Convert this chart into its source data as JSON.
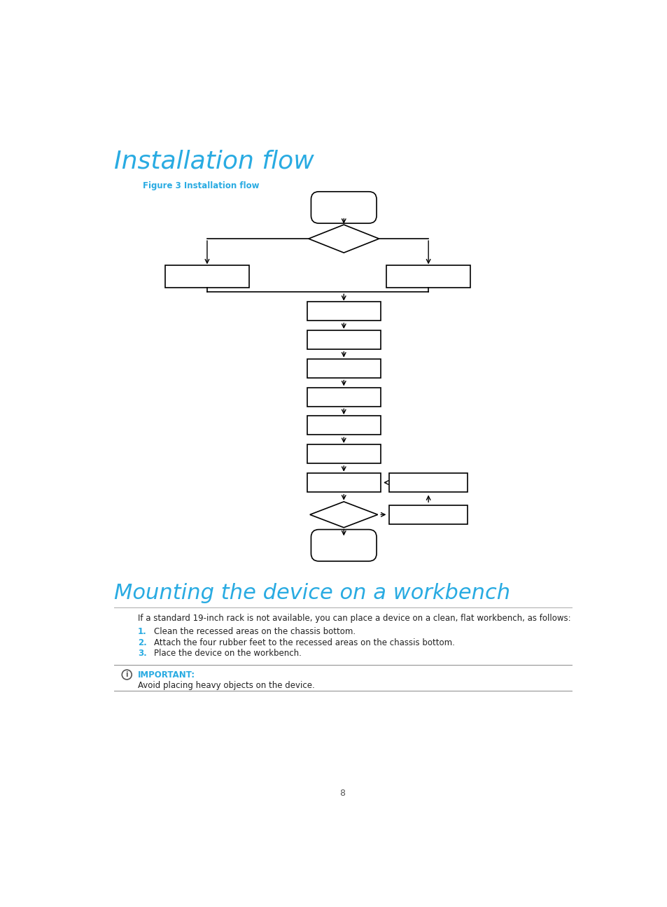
{
  "title": "Installation flow",
  "title_color": "#29ABE2",
  "figure_label": "Figure 3 Installation flow",
  "figure_label_color": "#29ABE2",
  "section2_title": "Mounting the device on a workbench",
  "section2_title_color": "#29ABE2",
  "body_text": "If a standard 19-inch rack is not available, you can place a device on a clean, flat workbench, as follows:",
  "list_items": [
    "Clean the recessed areas on the chassis bottom.",
    "Attach the four rubber feet to the recessed areas on the chassis bottom.",
    "Place the device on the workbench."
  ],
  "list_color": "#29ABE2",
  "important_label": "IMPORTANT:",
  "important_color": "#29ABE2",
  "important_text": "Avoid placing heavy objects on the device.",
  "page_number": "8",
  "bg_color": "#ffffff",
  "box_color": "#000000",
  "arrow_color": "#000000"
}
